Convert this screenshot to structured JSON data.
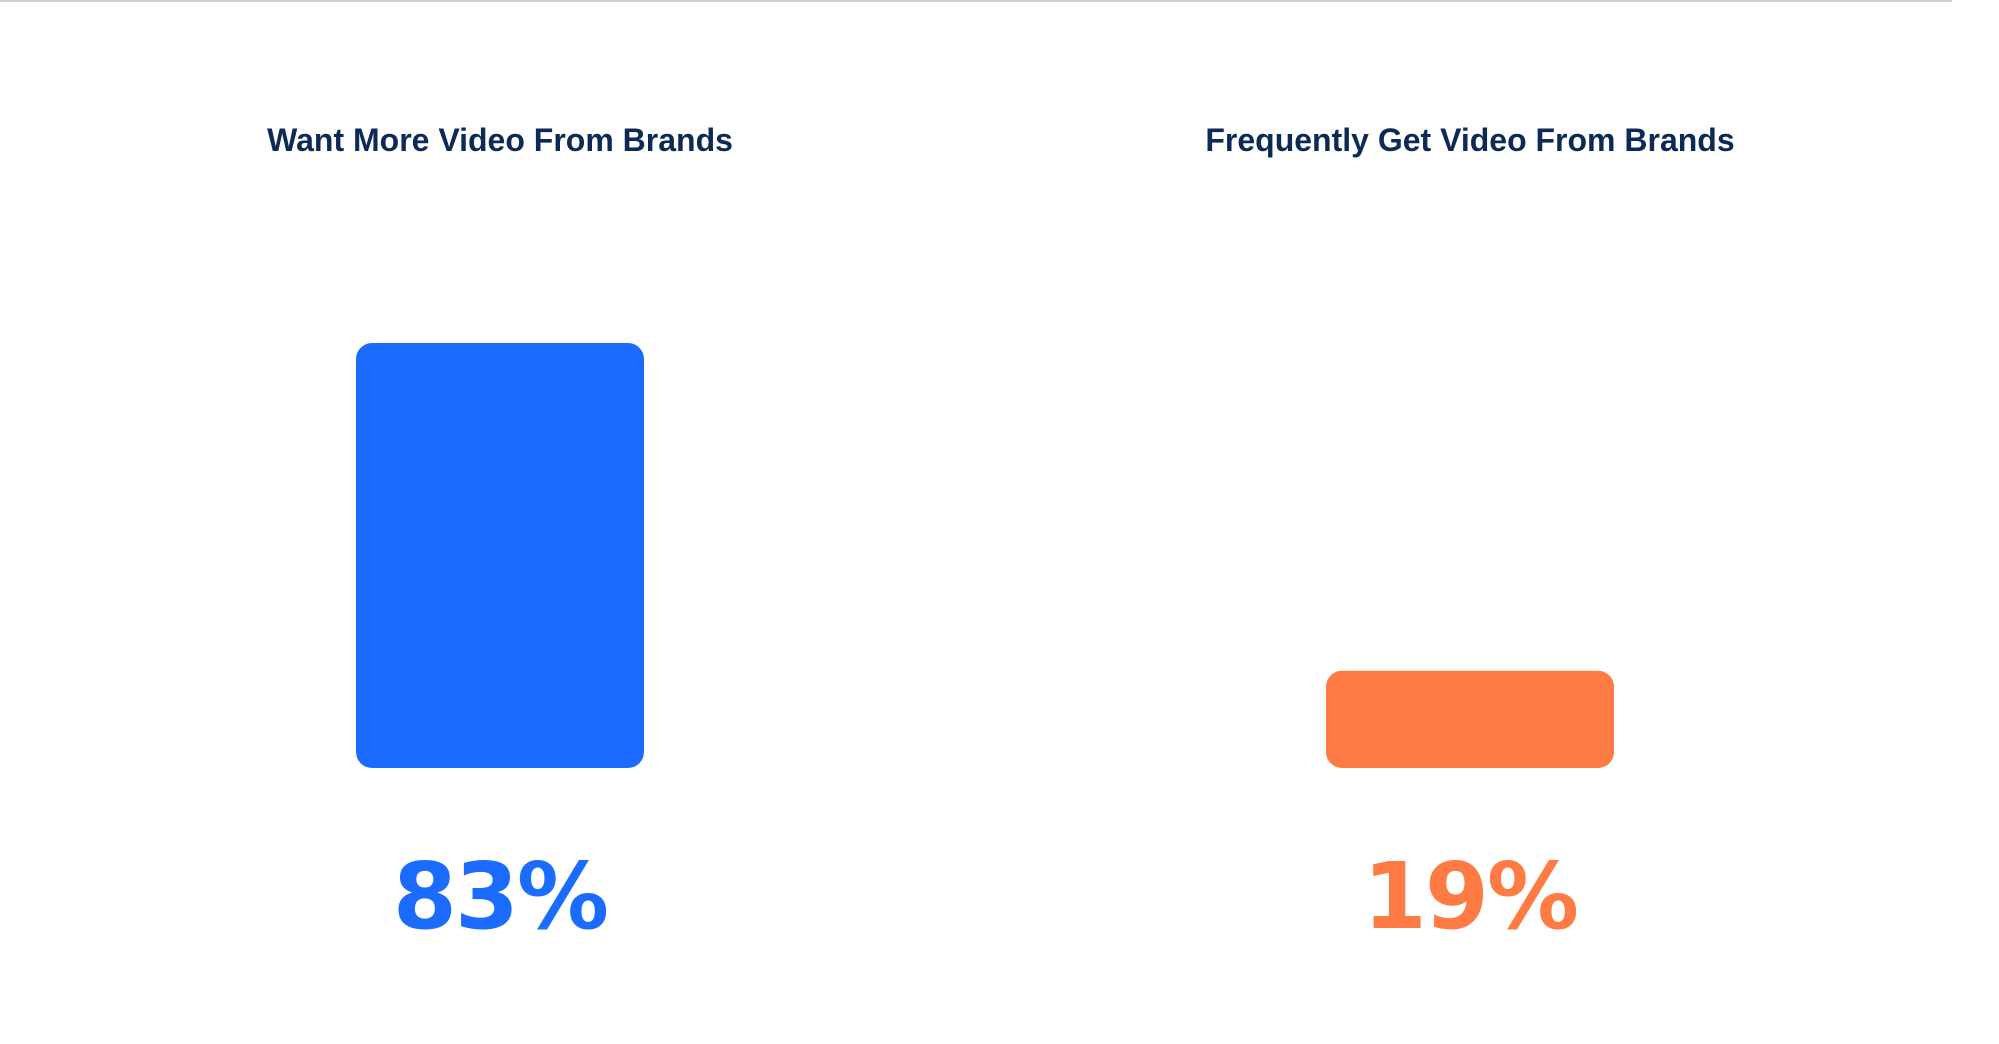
{
  "chart_data": {
    "type": "bar",
    "categories": [
      "Want More Video From Brands",
      "Frequently Get Video From Brands"
    ],
    "values": [
      83,
      19
    ],
    "value_labels": [
      "83%",
      "19%"
    ],
    "colors": [
      "#1b6cfe",
      "#fe7c43"
    ],
    "title_color": "#0d2a57",
    "ylim": [
      0,
      100
    ],
    "grid": false,
    "legend": "none"
  }
}
